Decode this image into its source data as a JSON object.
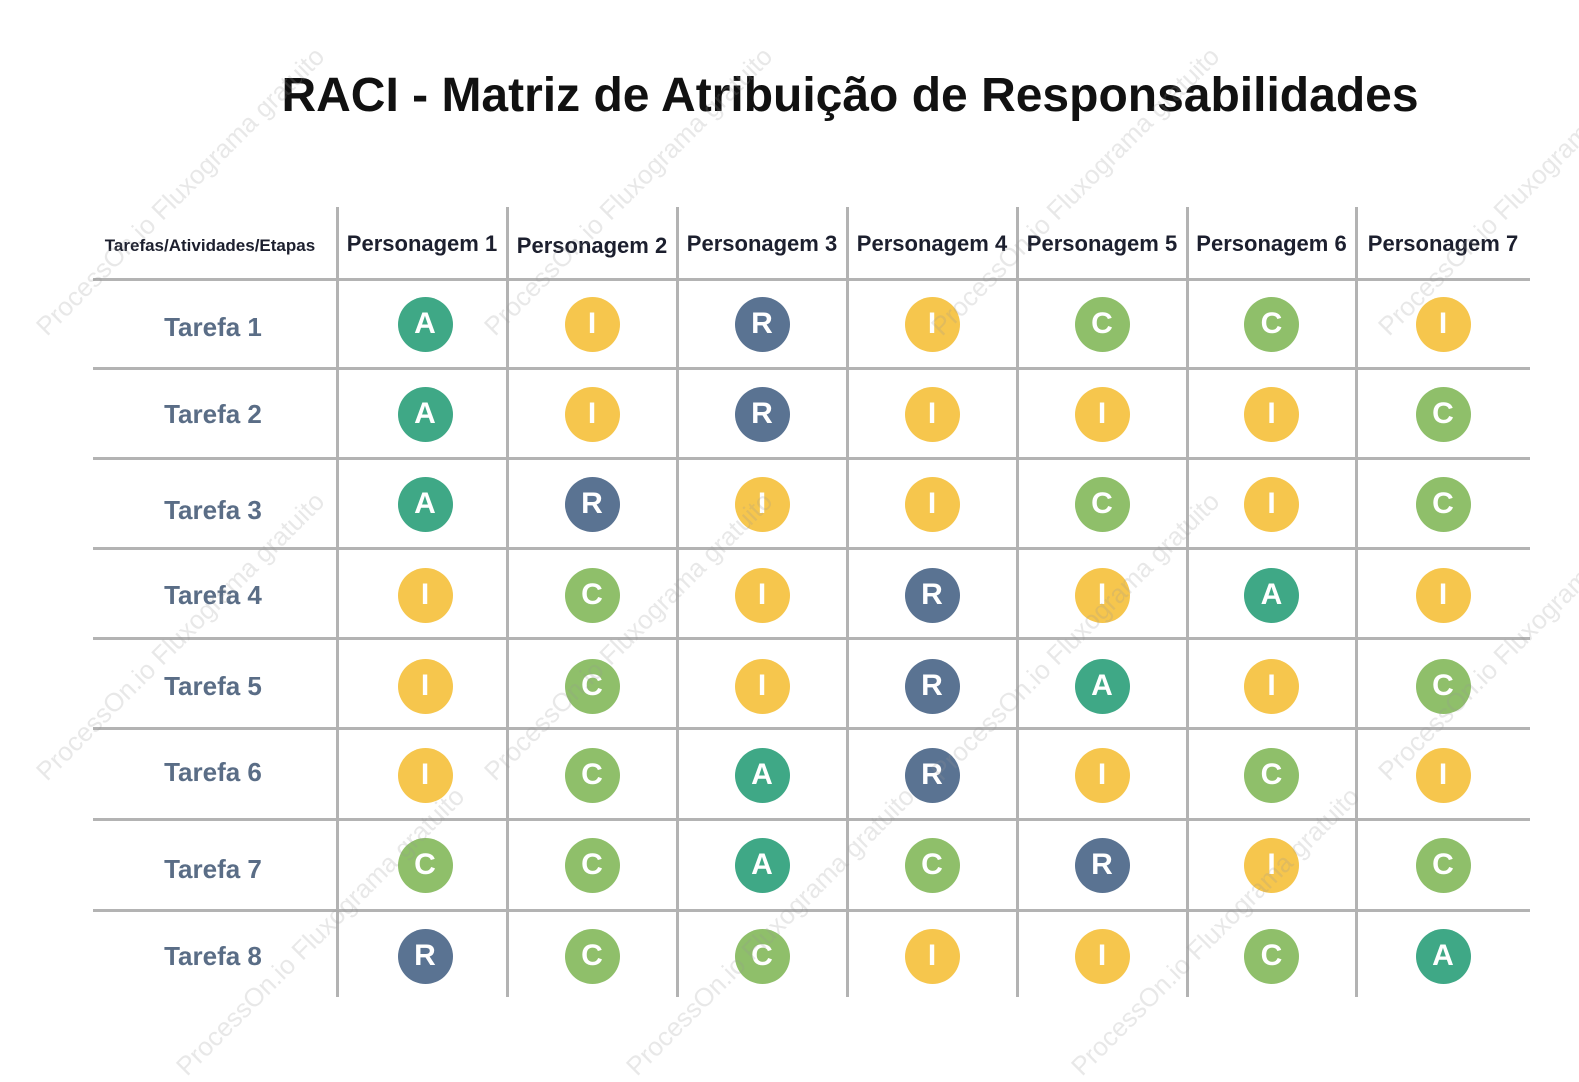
{
  "title": "RACI - Matriz de Atribuição de Responsabilidades",
  "matrix": {
    "corner_header": "Tarefas/Atividades/Etapas",
    "people": [
      "Personagem 1",
      "Personagem 2",
      "Personagem 3",
      "Personagem 4",
      "Personagem 5",
      "Personagem 6",
      "Personagem 7"
    ],
    "rows": [
      {
        "task": "Tarefa 1",
        "roles": [
          "A",
          "I",
          "R",
          "I",
          "C",
          "C",
          "I"
        ]
      },
      {
        "task": "Tarefa 2",
        "roles": [
          "A",
          "I",
          "R",
          "I",
          "I",
          "I",
          "C"
        ]
      },
      {
        "task": "Tarefa 3",
        "roles": [
          "A",
          "R",
          "I",
          "I",
          "C",
          "I",
          "C"
        ]
      },
      {
        "task": "Tarefa 4",
        "roles": [
          "I",
          "C",
          "I",
          "R",
          "I",
          "A",
          "I"
        ]
      },
      {
        "task": "Tarefa 5",
        "roles": [
          "I",
          "C",
          "I",
          "R",
          "A",
          "I",
          "C"
        ]
      },
      {
        "task": "Tarefa 6",
        "roles": [
          "I",
          "C",
          "A",
          "R",
          "I",
          "C",
          "I"
        ]
      },
      {
        "task": "Tarefa 7",
        "roles": [
          "C",
          "C",
          "A",
          "C",
          "R",
          "I",
          "C"
        ]
      },
      {
        "task": "Tarefa 8",
        "roles": [
          "R",
          "C",
          "C",
          "I",
          "I",
          "C",
          "A"
        ]
      }
    ]
  },
  "role_colors": {
    "A": "#3fa886",
    "R": "#5a7392",
    "I": "#f6c64d",
    "C": "#8fbf6a"
  },
  "watermark": "ProcessOn.io Fluxograma gratuito"
}
